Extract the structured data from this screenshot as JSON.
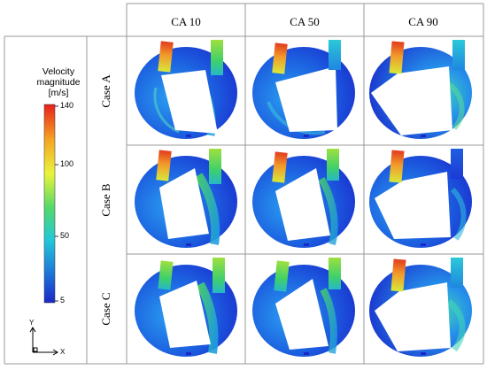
{
  "columns": [
    "CA 10",
    "CA 50",
    "CA 90"
  ],
  "rows": [
    "Case A",
    "Case B",
    "Case C"
  ],
  "legend": {
    "title_line1": "Velocity",
    "title_line2": "magnitude",
    "title_line3": "[m/s]",
    "ticks": [
      "140",
      "100",
      "50",
      "5"
    ],
    "colors": [
      "#e8201c",
      "#f5a623",
      "#e9f53b",
      "#54d86a",
      "#22c9d6",
      "#1e7ad8",
      "#1a28c7"
    ]
  },
  "axes": {
    "y_label": "Y",
    "x_label": "X"
  }
}
